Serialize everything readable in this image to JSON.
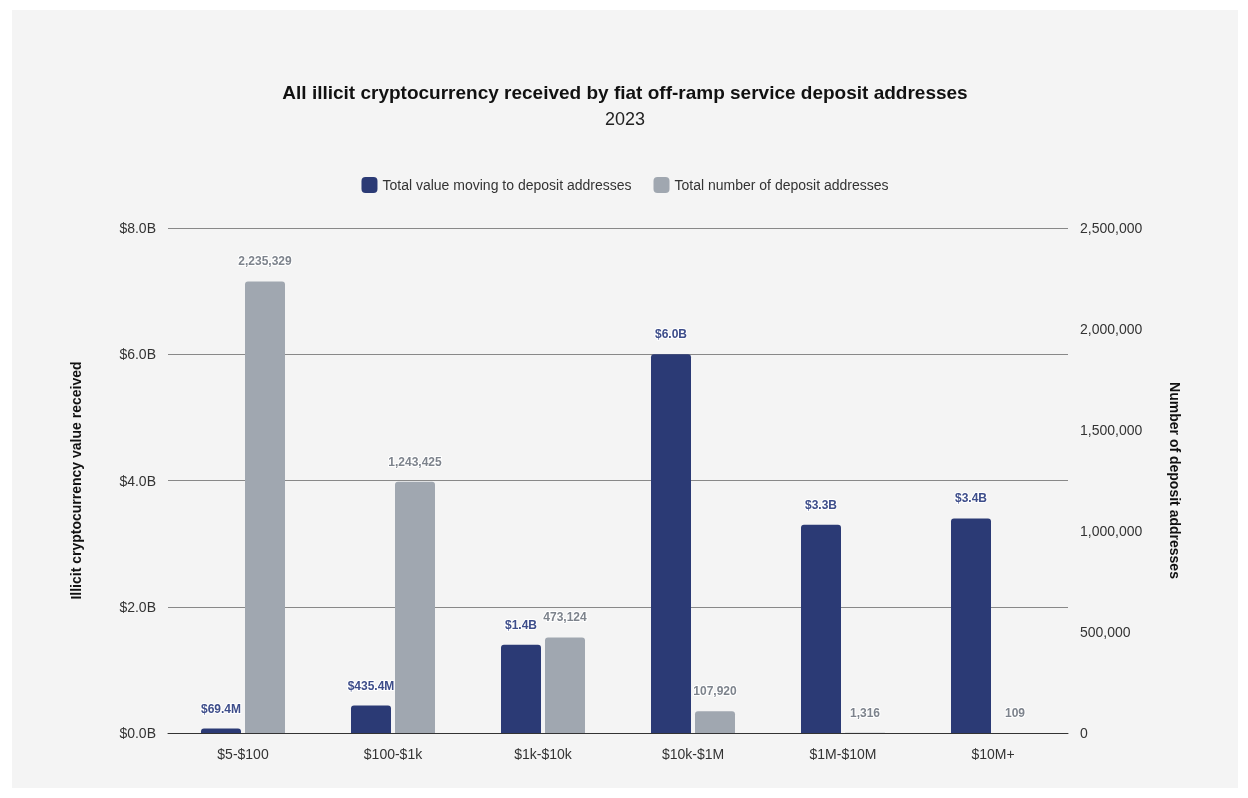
{
  "chart_data": {
    "type": "bar",
    "title": "All illicit cryptocurrency received by fiat off-ramp service deposit addresses",
    "subtitle": "2023",
    "categories": [
      "$5-$100",
      "$100-$1k",
      "$1k-$10k",
      "$10k-$1M",
      "$1M-$10M",
      "$10M+"
    ],
    "series": [
      {
        "name": "Total value moving to deposit addresses",
        "color": "#2b3a75",
        "values": [
          69400000,
          435400000,
          1400000000,
          6000000000,
          3300000000,
          3400000000
        ],
        "value_labels": [
          "$69.4M",
          "$435.4M",
          "$1.4B",
          "$6.0B",
          "$3.3B",
          "$3.4B"
        ]
      },
      {
        "name": "Total number of deposit addresses",
        "color": "#a0a7b0",
        "axis": "y2",
        "values": [
          2235329,
          1243425,
          473124,
          107920,
          1316,
          109
        ],
        "value_labels": [
          "2,235,329",
          "1,243,425",
          "473,124",
          "107,920",
          "1,316",
          "109"
        ]
      }
    ],
    "ylabel": "Illicit cryptocurrency value received",
    "y2label": "Number of deposit addresses",
    "ylim": [
      0,
      8000000000
    ],
    "yticks": [
      {
        "value": 0,
        "label": "$0.0B"
      },
      {
        "value": 2000000000,
        "label": "$2.0B"
      },
      {
        "value": 4000000000,
        "label": "$4.0B"
      },
      {
        "value": 6000000000,
        "label": "$6.0B"
      },
      {
        "value": 8000000000,
        "label": "$8.0B"
      }
    ],
    "y2lim": [
      0,
      2500000
    ],
    "y2ticks": [
      {
        "value": 0,
        "label": "0"
      },
      {
        "value": 500000,
        "label": "500,000"
      },
      {
        "value": 1000000,
        "label": "1,000,000"
      },
      {
        "value": 1500000,
        "label": "1,500,000"
      },
      {
        "value": 2000000,
        "label": "2,000,000"
      },
      {
        "value": 2500000,
        "label": "2,500,000"
      }
    ],
    "grid": "y",
    "legend": "top"
  }
}
